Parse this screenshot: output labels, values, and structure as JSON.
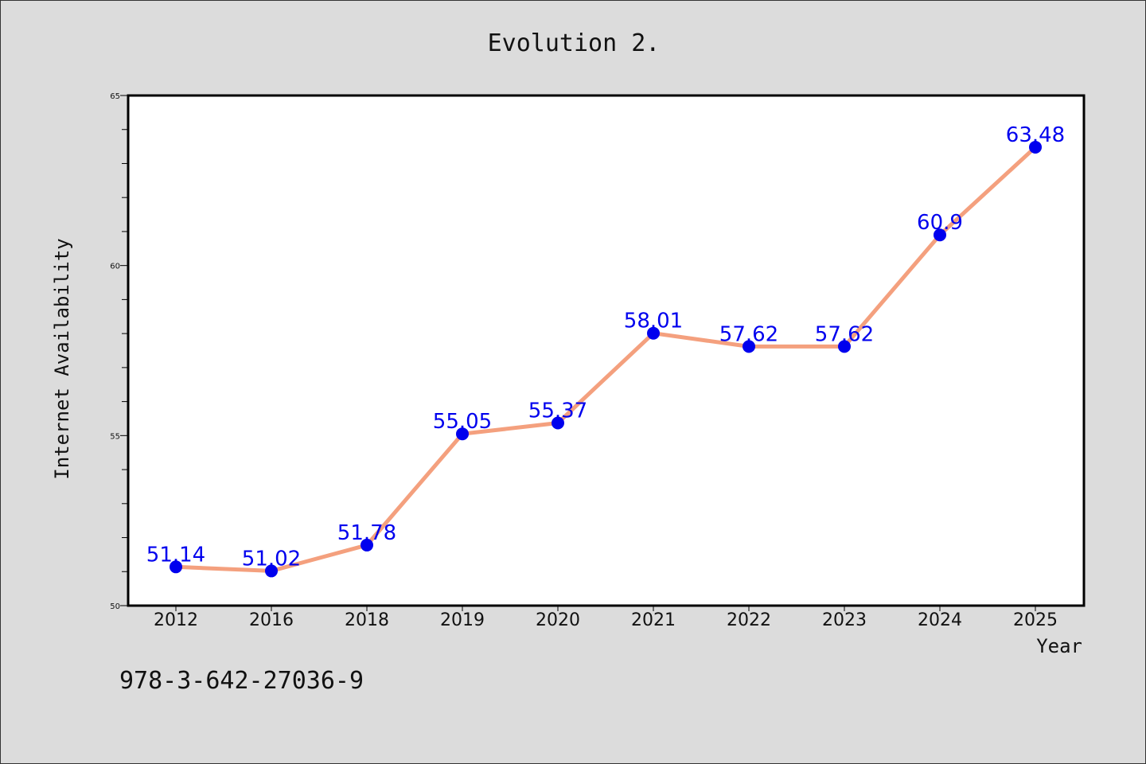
{
  "chart_data": {
    "type": "line",
    "title": "Evolution 2.",
    "xlabel": "Year",
    "ylabel": "Internet Availability",
    "categories": [
      "2012",
      "2016",
      "2018",
      "2019",
      "2020",
      "2021",
      "2022",
      "2023",
      "2024",
      "2025"
    ],
    "series": [
      {
        "values": [
          51.14,
          51.02,
          51.78,
          55.05,
          55.37,
          58.01,
          57.62,
          57.62,
          60.9,
          63.48
        ],
        "labels": [
          "51.14",
          "51.02",
          "51.78",
          "55.05",
          "55.37",
          "58.01",
          "57.62",
          "57.62",
          "60.9",
          "63.48"
        ],
        "line_color": "#f4a07e",
        "marker_color": "#0000ee",
        "label_color": "#0000ee"
      }
    ],
    "ylim": [
      50,
      65
    ],
    "yticks": [
      50,
      55,
      60,
      65
    ],
    "ytick_labels": [
      "50",
      "55",
      "60",
      "65"
    ],
    "y_minor_step": 1,
    "grid": false,
    "legend": "none"
  },
  "footer": {
    "code": "978-3-642-27036-9"
  }
}
